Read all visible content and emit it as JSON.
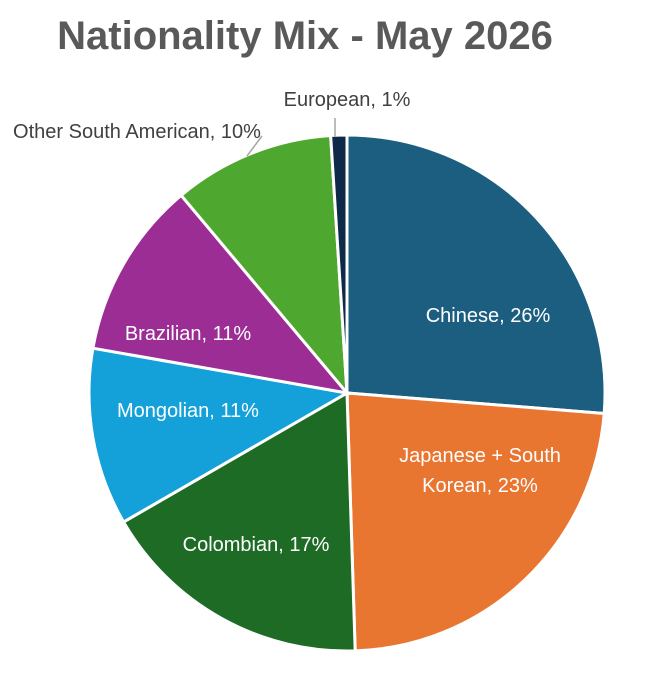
{
  "chart_data": {
    "type": "pie",
    "title": "Nationality Mix - May 2026",
    "categories": [
      "Chinese, 26%",
      "Japanese + South Korean, 23%",
      "Colombian, 17%",
      "Mongolian, 11%",
      "Brazilian, 11%",
      "Other South American, 10%",
      "European, 1%"
    ],
    "values": [
      26,
      23,
      17,
      11,
      11,
      10,
      1
    ],
    "colors": [
      "#1b5e80",
      "#e87530",
      "#1e6b26",
      "#14a0d8",
      "#9b2d95",
      "#4ea72e",
      "#0e2a48"
    ]
  }
}
